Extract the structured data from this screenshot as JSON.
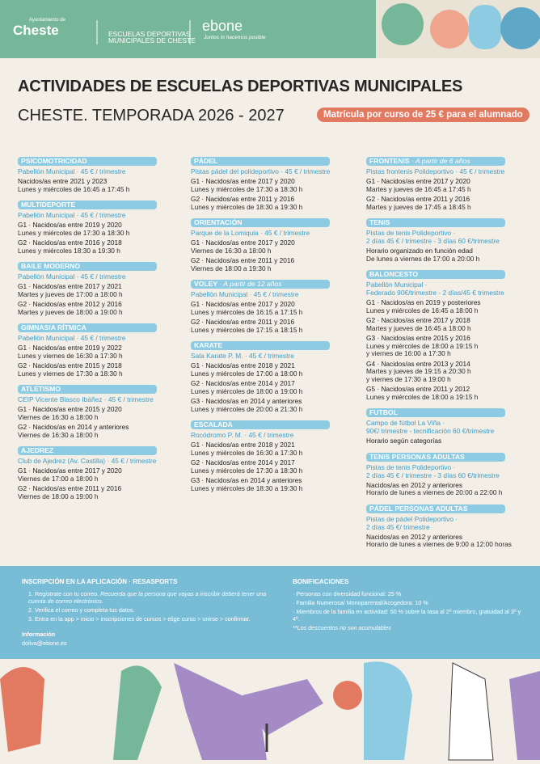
{
  "header": {
    "town_pre": "Ayuntamiento de",
    "town": "Cheste",
    "school_1": "ESCUELAS DEPORTIVAS",
    "school_2": "MUNICIPALES DE CHESTE",
    "brand": "ebone",
    "slogan": "Juntos lo hacemos posible"
  },
  "title": "ACTIVIDADES DE ESCUELAS DEPORTIVAS MUNICIPALES",
  "subtitle": "CHESTE. TEMPORADA 2026 - 2027",
  "badge": "Matrícula por curso de 25 € para el alumnado",
  "columns": [
    [
      {
        "title": "PSICOMOTRICIDAD",
        "venue": [
          "Pabellón Municipal · 45 € / trimestre"
        ],
        "items": [
          {
            "group": "Nacidos/as entre 2021 y 2023",
            "lines": [
              "Lunes y miércoles de 16:45 a 17:45 h"
            ]
          }
        ]
      },
      {
        "title": "MULTIDEPORTE",
        "venue": [
          "Pabellón Municipal · 45 € / trimestre"
        ],
        "items": [
          {
            "group": "G1 · Nacidos/as entre 2019 y 2020",
            "lines": [
              "Lunes y miércoles de 17:30 a 18:30 h"
            ]
          },
          {
            "group": "G2 · Nacidos/as entre 2016 y 2018",
            "lines": [
              "Lunes y miércoles 18:30 a 19:30 h"
            ]
          }
        ]
      },
      {
        "title": "BAILE MODERNO",
        "venue": [
          "Pabellón Municipal · 45 € / trimestre"
        ],
        "items": [
          {
            "group": "G1 · Nacidos/as entre 2017 y 2021",
            "lines": [
              "Martes y jueves de 17:00 a 18:00 h"
            ]
          },
          {
            "group": "G2 · Nacidos/as entre 2012 y 2016",
            "lines": [
              "Martes y jueves de 18:00 a 19:00 h"
            ]
          }
        ]
      },
      {
        "title": "GIMNASIA RÍTMICA",
        "venue": [
          "Pabellón Municipal · 45 € / trimestre"
        ],
        "items": [
          {
            "group": "G1 · Nacidos/as entre 2019 y 2022",
            "lines": [
              "Lunes y viernes de 16:30 a 17:30 h"
            ]
          },
          {
            "group": "G2 · Nacidos/as entre 2015 y 2018",
            "lines": [
              "Lunes y viernes de 17:30 a 18:30 h"
            ]
          }
        ]
      },
      {
        "title": "ATLETISMO",
        "venue": [
          "CEIP Vicente Blasco Ibáñez · 45 € / trimestre"
        ],
        "items": [
          {
            "group": "G1 · Nacidos/as entre 2015 y 2020",
            "lines": [
              "Viernes de 16:30 a 18:00 h"
            ]
          },
          {
            "group": "G2 · Nacidos/as en 2014 y anteriores",
            "lines": [
              "Viernes de 16:30 a 18:00 h"
            ]
          }
        ]
      },
      {
        "title": "AJEDREZ",
        "venue": [
          "Club de Ajedrez (Av. Castilla) · 45 € / trimestre"
        ],
        "items": [
          {
            "group": "G1 · Nacidos/as entre 2017 y 2020",
            "lines": [
              "Viernes de 17:00 a 18:00 h"
            ]
          },
          {
            "group": "G2 · Nacidos/as entre 2011 y 2016",
            "lines": [
              "Viernes de 18:00 a 19:00 h"
            ]
          }
        ]
      }
    ],
    [
      {
        "title": "PÁDEL",
        "venue": [
          "Pistas pádel del polideportivo · 45 € / trimestre"
        ],
        "items": [
          {
            "group": "G1 · Nacidos/as entre 2017 y 2020",
            "lines": [
              "Lunes y miércoles de 17:30 a 18:30 h"
            ]
          },
          {
            "group": "G2 · Nacidos/as entre 2011 y 2016",
            "lines": [
              "Lunes y miércoles de 18:30 a 19:30 h"
            ]
          }
        ]
      },
      {
        "title": "ORIENTACIÓN",
        "venue": [
          "Parque de la Lomiquia · 45 € / trimestre"
        ],
        "items": [
          {
            "group": "G1 · Nacidos/as entre 2017 y 2020",
            "lines": [
              "Viernes de 16:30 a 18:00 h"
            ]
          },
          {
            "group": "G2 · Nacidos/as entre 2011 y 2016",
            "lines": [
              "Viernes de 18:00 a 19:30 h"
            ]
          }
        ]
      },
      {
        "title": "VOLEY",
        "note": "· A partir de 12 años",
        "venue": [
          "Pabellón Municipal · 45 € / trimestre"
        ],
        "items": [
          {
            "group": "G1 · Nacidos/as entre 2017 y 2020",
            "lines": [
              "Lunes y miércoles de 16:15 a 17:15 h"
            ]
          },
          {
            "group": "G2 · Nacidos/as entre 2011 y 2016",
            "lines": [
              "Lunes y miércoles de 17:15 a 18:15 h"
            ]
          }
        ]
      },
      {
        "title": "KARATE",
        "venue": [
          "Sala Karate P. M. · 45 € / trimestre"
        ],
        "items": [
          {
            "group": "G1 · Nacidos/as entre 2018 y 2021",
            "lines": [
              "Lunes y miércoles de 17:00 a 18:00 h"
            ]
          },
          {
            "group": "G2 · Nacidos/as entre 2014 y 2017",
            "lines": [
              "Lunes y miércoles de 18:00 a 19:00 h"
            ]
          },
          {
            "group": "G3 · Nacidos/as en 2014 y anteriores",
            "lines": [
              "Lunes y miércoles de 20:00 a 21:30 h"
            ]
          }
        ]
      },
      {
        "title": "ESCALADA",
        "venue": [
          "Rocódromo P. M. · 45 € / trimestre"
        ],
        "items": [
          {
            "group": "G1 · Nacidos/as entre 2018 y 2021",
            "lines": [
              "Lunes y miércoles de 16:30 a 17:30 h"
            ]
          },
          {
            "group": "G2 · Nacidos/as entre 2014 y 2017",
            "lines": [
              "Lunes y miércoles de 17:30 a 18:30 h"
            ]
          },
          {
            "group": "G3 · Nacidos/as en 2014 y anteriores",
            "lines": [
              "Lunes y miércoles de 18:30 a 19:30 h"
            ]
          }
        ]
      }
    ],
    [
      {
        "title": "FRONTENIS",
        "note": "· A partir de 6 años",
        "venue": [
          "Pistas frontenis Polideportivo · 45 € / trimestre"
        ],
        "items": [
          {
            "group": "G1 · Nacidos/as entre 2017 y 2020",
            "lines": [
              "Martes y jueves de 16:45 a 17:45 h"
            ]
          },
          {
            "group": "G2 · Nacidos/as entre 2011 y 2016",
            "lines": [
              "Martes y jueves de 17:45 a 18:45 h"
            ]
          }
        ]
      },
      {
        "title": "TENIS",
        "venue": [
          "Pistas de tenis Polideportivo ·",
          "2 días 45 € / trimestre - 3 días 60 €/trimestre"
        ],
        "items": [
          {
            "group": "Horario organizado en función edad",
            "lines": [
              "De lunes a viernes de 17:00 a 20:00 h"
            ]
          }
        ]
      },
      {
        "title": "BALONCESTO",
        "venue": [
          "Pabellón Municipal ·",
          "Federado 90€/trimestre - 2 días/45 € trimestre"
        ],
        "items": [
          {
            "group": "G1 · Nacidos/as en 2019 y posteriores",
            "lines": [
              "Lunes y miércoles de 16:45 a 18:00 h"
            ]
          },
          {
            "group": "G2 · Nacidos/as entre 2017 y 2018",
            "lines": [
              "Martes y jueves de 16:45 a 18:00 h"
            ]
          },
          {
            "group": "G3 · Nacidos/as entre 2015 y 2016",
            "lines": [
              "Lunes y miércoles de 18:00 a 19:15 h",
              "y viernes de 16:00 a 17:30 h"
            ]
          },
          {
            "group": "G4 · Nacidos/as entre 2013 y 2014",
            "lines": [
              "Martes y jueves de 19:15 a 20:30 h",
              "y viernes de 17:30 a 19:00 h"
            ]
          },
          {
            "group": "G5 · Nacidos/as entre 2011 y 2012",
            "lines": [
              "Lunes y miércoles de 18:00 a 19:15 h"
            ]
          }
        ]
      },
      {
        "title": "FUTBOL",
        "venue": [
          "Campo de fútbol La Viña ·",
          "90€/ trimestre - tecnificación 60 €/trimestre"
        ],
        "items": [
          {
            "group": "Horario según categorías",
            "lines": []
          }
        ]
      },
      {
        "title": "TENIS PERSONAS ADULTAS",
        "venue": [
          "Pistas de tenis Polideportivo ·",
          "2 días 45 € / trimestre - 3 días 60 €/trimestre"
        ],
        "items": [
          {
            "group": "Nacidos/as en 2012 y anteriores",
            "lines": [
              "Horario de lunes a viernes de 20:00 a 22:00 h"
            ]
          }
        ]
      },
      {
        "title": "PÁDEL PERSONAS ADULTAS",
        "venue": [
          "Pistas de pádel Polideportivo ·",
          "2 días 45 €/ trimestre"
        ],
        "items": [
          {
            "group": "Nacidos/as en 2012 y anteriores",
            "lines": [
              "Horario de lunes a viernes de 9:00 a 12:00 horas"
            ]
          }
        ]
      }
    ]
  ],
  "footer": {
    "left_title": "INSCRIPCIÓN EN LA APLICACIÓN · RESASPORTS",
    "steps": [
      [
        "1.  Regístrate con tu correo. ",
        "Recuerda que la persona que vayas a inscribir deberá tener una cuenta de correo electrónico."
      ],
      [
        "2. Verifica el correo y completa tus datos.",
        ""
      ],
      [
        "3. Entra en la app > inicio > inscripciones de cursos > elige curso > unirse > confirmar.",
        ""
      ]
    ],
    "info_title": "Información",
    "email": "doliva@ebone.es",
    "right_title": "BONIFICACIONES",
    "discounts": [
      "· Personas con diversidad funcional: 25 %",
      "· Familia Numerosa/ Monoparental/Acogedora: 10 %",
      "· Miembros de la familia en actividad: 50 % sobre la tasa al 2º miembro, gratuidad al 3º y 4º."
    ],
    "note": "**Los descuentos no son acumulables"
  }
}
